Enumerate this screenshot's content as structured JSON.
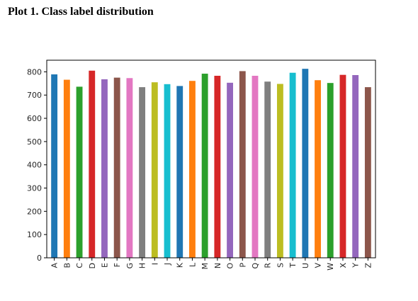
{
  "page": {
    "title": "Plot 1. Class label distribution"
  },
  "chart_data": {
    "type": "bar",
    "title": "",
    "xlabel": "",
    "ylabel": "",
    "ylim": [
      0,
      850
    ],
    "y_ticks": [
      0,
      100,
      200,
      300,
      400,
      500,
      600,
      700,
      800
    ],
    "grid": false,
    "legend": "none",
    "categories": [
      "A",
      "B",
      "C",
      "D",
      "E",
      "F",
      "G",
      "H",
      "I",
      "J",
      "K",
      "L",
      "M",
      "N",
      "O",
      "P",
      "Q",
      "R",
      "S",
      "T",
      "U",
      "V",
      "W",
      "X",
      "Y",
      "Z"
    ],
    "values": [
      789,
      766,
      736,
      805,
      768,
      775,
      773,
      734,
      755,
      747,
      739,
      761,
      792,
      783,
      753,
      803,
      783,
      758,
      748,
      796,
      813,
      764,
      752,
      787,
      786,
      734
    ],
    "colors": [
      "#1f77b4",
      "#ff7f0e",
      "#2ca02c",
      "#d62728",
      "#9467bd",
      "#8c564b",
      "#e377c2",
      "#7f7f7f",
      "#bcbd22",
      "#17becf"
    ]
  }
}
